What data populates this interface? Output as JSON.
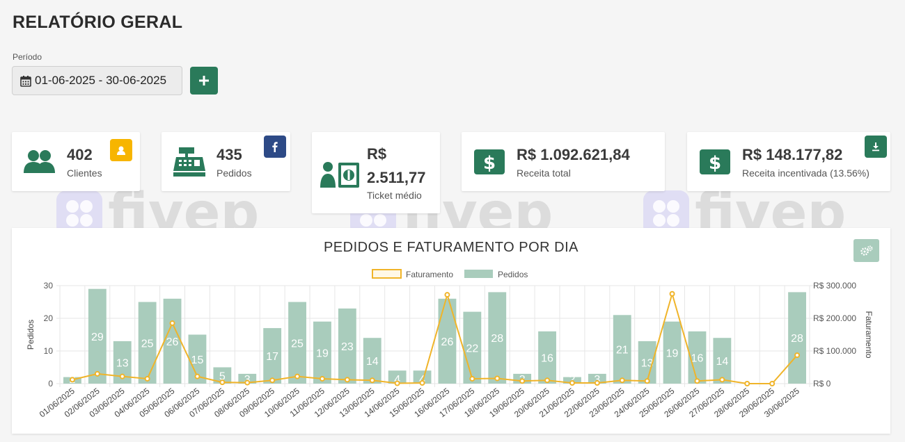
{
  "page": {
    "title": "RELATÓRIO GERAL"
  },
  "filters": {
    "period_label": "Período",
    "date_range": "01-06-2025 - 30-06-2025"
  },
  "cards": {
    "clientes": {
      "value": "402",
      "label": "Clientes"
    },
    "pedidos": {
      "value": "435",
      "label": "Pedidos"
    },
    "ticket": {
      "value_line1": "R$",
      "value_line2": "2.511,77",
      "label": "Ticket médio"
    },
    "receita": {
      "value": "R$ 1.092.621,84",
      "label": "Receita total"
    },
    "incentivada": {
      "value": "R$ 148.177,82",
      "label": "Receita incentivada (13.56%)"
    }
  },
  "watermark": {
    "text": "fivep"
  },
  "colors": {
    "primary": "#2a7a5a",
    "bar": "#a9ccbc",
    "line": "#f0b429",
    "badge_yellow": "#f7b500",
    "badge_facebook": "#2d4a86"
  },
  "chart_data": {
    "type": "bar",
    "title": "PEDIDOS E FATURAMENTO POR DIA",
    "categories": [
      "01/06/2025",
      "02/06/2025",
      "03/06/2025",
      "04/06/2025",
      "05/06/2025",
      "06/06/2025",
      "07/06/2025",
      "08/06/2025",
      "09/06/2025",
      "10/06/2025",
      "11/06/2025",
      "12/06/2025",
      "13/06/2025",
      "14/06/2025",
      "15/06/2025",
      "16/06/2025",
      "17/06/2025",
      "18/06/2025",
      "19/06/2025",
      "20/06/2025",
      "21/06/2025",
      "22/06/2025",
      "23/06/2025",
      "24/06/2025",
      "25/06/2025",
      "26/06/2025",
      "27/06/2025",
      "28/06/2025",
      "29/06/2025",
      "30/06/2025"
    ],
    "series": [
      {
        "name": "Pedidos",
        "type": "bar",
        "axis": "left",
        "values": [
          2,
          29,
          13,
          25,
          26,
          15,
          5,
          3,
          17,
          25,
          19,
          23,
          14,
          4,
          4,
          26,
          22,
          28,
          3,
          16,
          2,
          3,
          21,
          13,
          19,
          16,
          14,
          0,
          0,
          28
        ]
      },
      {
        "name": "Faturamento",
        "type": "line",
        "axis": "right",
        "values": [
          12000,
          30000,
          22000,
          15000,
          185000,
          22000,
          4000,
          3000,
          10000,
          22000,
          15000,
          12000,
          10000,
          1000,
          2000,
          272000,
          15000,
          16000,
          8000,
          10000,
          2000,
          2000,
          10000,
          8000,
          275000,
          8000,
          12000,
          0,
          0,
          87000
        ]
      }
    ],
    "ylabel_left": "Pedidos",
    "ylabel_right": "Faturamento",
    "ylim_left": [
      0,
      30
    ],
    "ylim_right": [
      0,
      300000
    ],
    "yticks_left": [
      "0",
      "10",
      "20",
      "30"
    ],
    "yticks_right": [
      "R$ 0",
      "R$ 100.000",
      "R$ 200.000",
      "R$ 300.000"
    ],
    "legend_position": "top",
    "grid": true
  }
}
